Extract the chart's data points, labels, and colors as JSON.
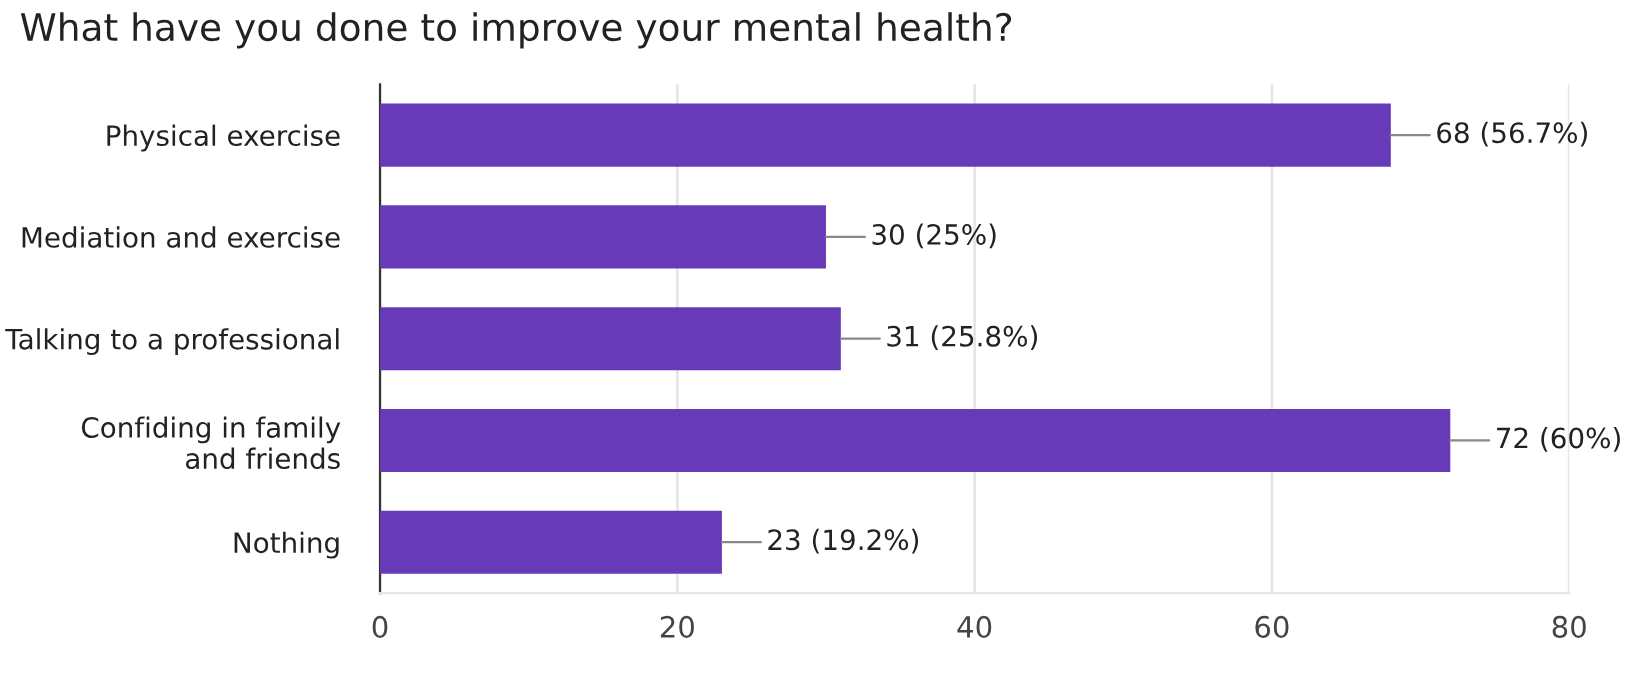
{
  "chart_data": {
    "type": "bar",
    "orientation": "horizontal",
    "title": "What have you done to improve your mental health?",
    "categories": [
      "Physical exercise",
      "Mediation and exercise",
      "Talking to a professional",
      "Confiding in family\nand friends",
      "Nothing"
    ],
    "values": [
      68,
      30,
      31,
      72,
      23
    ],
    "value_labels": [
      "68 (56.7%)",
      "30 (25%)",
      "31 (25.8%)",
      "72 (60%)",
      "23 (19.2%)"
    ],
    "color": "#673ab7",
    "xlim": [
      0,
      80
    ],
    "xticks": [
      0,
      20,
      40,
      60,
      80
    ],
    "grid": "x"
  }
}
